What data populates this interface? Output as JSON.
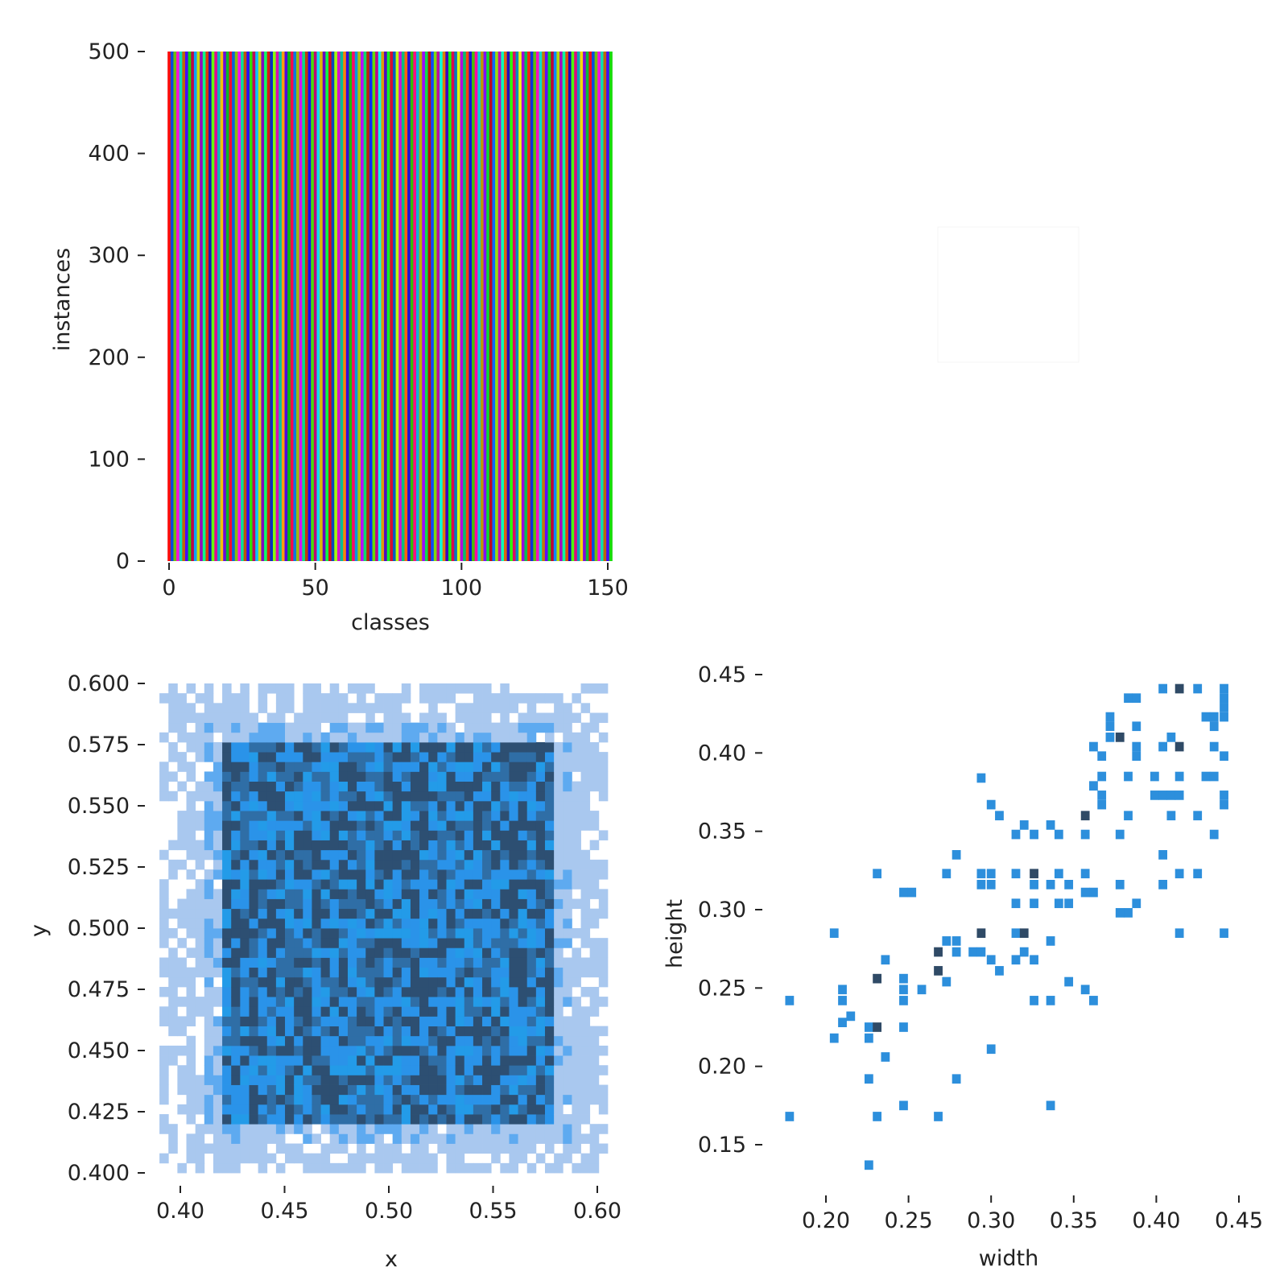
{
  "chart_data": [
    {
      "type": "bar",
      "panel": "top-left",
      "xlabel": "classes",
      "ylabel": "instances",
      "xlim": [
        -1,
        151
      ],
      "ylim": [
        0,
        500
      ],
      "xticks": [
        "0",
        "50",
        "100",
        "150"
      ],
      "yticks": [
        "0",
        "100",
        "200",
        "300",
        "400",
        "500"
      ],
      "num_classes": 152,
      "value_per_class": 500,
      "colormap": "hsv",
      "grid": false
    },
    {
      "type": "heatmap",
      "panel": "bottom-left",
      "xlabel": "x",
      "ylabel": "y",
      "xlim": [
        0.39,
        0.605
      ],
      "ylim": [
        0.4,
        0.6
      ],
      "xticks": [
        "0.40",
        "0.45",
        "0.50",
        "0.55",
        "0.60"
      ],
      "yticks": [
        "0.400",
        "0.425",
        "0.450",
        "0.475",
        "0.500",
        "0.525",
        "0.550",
        "0.575",
        "0.600"
      ],
      "bins": 50,
      "dense_region": {
        "x": [
          0.42,
          0.58
        ],
        "y": [
          0.42,
          0.575
        ]
      },
      "colors": {
        "low": "#a9c8ef",
        "mid": "#2a93e9",
        "high": "#2d4f72"
      }
    },
    {
      "type": "heatmap",
      "panel": "bottom-right",
      "xlabel": "width",
      "ylabel": "height",
      "xlim": [
        0.16,
        0.45
      ],
      "ylim": [
        0.12,
        0.45
      ],
      "xticks": [
        "0.20",
        "0.25",
        "0.30",
        "0.35",
        "0.40",
        "0.45"
      ],
      "yticks": [
        "0.15",
        "0.20",
        "0.25",
        "0.30",
        "0.35",
        "0.40",
        "0.45"
      ],
      "colors": {
        "mid": "#2d8fdc",
        "high": "#2f4a66"
      },
      "cells": [
        [
          0.178,
          0.242
        ],
        [
          0.178,
          0.168
        ],
        [
          0.205,
          0.218
        ],
        [
          0.205,
          0.285
        ],
        [
          0.21,
          0.228
        ],
        [
          0.21,
          0.249
        ],
        [
          0.21,
          0.242
        ],
        [
          0.215,
          0.232
        ],
        [
          0.226,
          0.218
        ],
        [
          0.226,
          0.225
        ],
        [
          0.226,
          0.192
        ],
        [
          0.226,
          0.137
        ],
        [
          0.231,
          0.225
        ],
        [
          0.231,
          0.256
        ],
        [
          0.231,
          0.168
        ],
        [
          0.231,
          0.323
        ],
        [
          0.236,
          0.268
        ],
        [
          0.236,
          0.206
        ],
        [
          0.247,
          0.249
        ],
        [
          0.247,
          0.256
        ],
        [
          0.247,
          0.242
        ],
        [
          0.247,
          0.225
        ],
        [
          0.247,
          0.175
        ],
        [
          0.247,
          0.311
        ],
        [
          0.252,
          0.311
        ],
        [
          0.258,
          0.249
        ],
        [
          0.268,
          0.273
        ],
        [
          0.268,
          0.261
        ],
        [
          0.268,
          0.168
        ],
        [
          0.273,
          0.254
        ],
        [
          0.273,
          0.28
        ],
        [
          0.279,
          0.28
        ],
        [
          0.279,
          0.273
        ],
        [
          0.279,
          0.335
        ],
        [
          0.279,
          0.192
        ],
        [
          0.273,
          0.323
        ],
        [
          0.289,
          0.273
        ],
        [
          0.294,
          0.273
        ],
        [
          0.294,
          0.285
        ],
        [
          0.294,
          0.323
        ],
        [
          0.3,
          0.323
        ],
        [
          0.294,
          0.316
        ],
        [
          0.3,
          0.316
        ],
        [
          0.294,
          0.384
        ],
        [
          0.3,
          0.268
        ],
        [
          0.3,
          0.367
        ],
        [
          0.3,
          0.211
        ],
        [
          0.305,
          0.36
        ],
        [
          0.305,
          0.261
        ],
        [
          0.315,
          0.348
        ],
        [
          0.315,
          0.323
        ],
        [
          0.315,
          0.285
        ],
        [
          0.315,
          0.268
        ],
        [
          0.315,
          0.304
        ],
        [
          0.32,
          0.354
        ],
        [
          0.32,
          0.285
        ],
        [
          0.32,
          0.273
        ],
        [
          0.326,
          0.348
        ],
        [
          0.326,
          0.323
        ],
        [
          0.326,
          0.316
        ],
        [
          0.326,
          0.304
        ],
        [
          0.326,
          0.268
        ],
        [
          0.326,
          0.242
        ],
        [
          0.336,
          0.354
        ],
        [
          0.336,
          0.316
        ],
        [
          0.336,
          0.28
        ],
        [
          0.336,
          0.242
        ],
        [
          0.336,
          0.175
        ],
        [
          0.341,
          0.348
        ],
        [
          0.341,
          0.323
        ],
        [
          0.341,
          0.304
        ],
        [
          0.347,
          0.316
        ],
        [
          0.347,
          0.304
        ],
        [
          0.347,
          0.254
        ],
        [
          0.357,
          0.323
        ],
        [
          0.357,
          0.311
        ],
        [
          0.357,
          0.36
        ],
        [
          0.357,
          0.348
        ],
        [
          0.357,
          0.249
        ],
        [
          0.362,
          0.311
        ],
        [
          0.362,
          0.242
        ],
        [
          0.362,
          0.379
        ],
        [
          0.362,
          0.404
        ],
        [
          0.367,
          0.373
        ],
        [
          0.367,
          0.367
        ],
        [
          0.367,
          0.398
        ],
        [
          0.367,
          0.385
        ],
        [
          0.372,
          0.423
        ],
        [
          0.378,
          0.348
        ],
        [
          0.378,
          0.316
        ],
        [
          0.378,
          0.298
        ],
        [
          0.378,
          0.41
        ],
        [
          0.383,
          0.298
        ],
        [
          0.383,
          0.385
        ],
        [
          0.383,
          0.36
        ],
        [
          0.383,
          0.435
        ],
        [
          0.388,
          0.435
        ],
        [
          0.388,
          0.417
        ],
        [
          0.388,
          0.404
        ],
        [
          0.388,
          0.398
        ],
        [
          0.388,
          0.304
        ],
        [
          0.399,
          0.373
        ],
        [
          0.399,
          0.385
        ],
        [
          0.404,
          0.441
        ],
        [
          0.404,
          0.404
        ],
        [
          0.404,
          0.373
        ],
        [
          0.404,
          0.335
        ],
        [
          0.404,
          0.316
        ],
        [
          0.409,
          0.41
        ],
        [
          0.409,
          0.373
        ],
        [
          0.409,
          0.36
        ],
        [
          0.414,
          0.441
        ],
        [
          0.414,
          0.404
        ],
        [
          0.414,
          0.385
        ],
        [
          0.414,
          0.373
        ],
        [
          0.414,
          0.323
        ],
        [
          0.414,
          0.285
        ],
        [
          0.425,
          0.323
        ],
        [
          0.425,
          0.441
        ],
        [
          0.425,
          0.36
        ],
        [
          0.43,
          0.423
        ],
        [
          0.43,
          0.385
        ],
        [
          0.435,
          0.423
        ],
        [
          0.435,
          0.385
        ],
        [
          0.435,
          0.348
        ],
        [
          0.435,
          0.404
        ],
        [
          0.435,
          0.417
        ],
        [
          0.441,
          0.441
        ],
        [
          0.441,
          0.435
        ],
        [
          0.441,
          0.429
        ],
        [
          0.441,
          0.423
        ],
        [
          0.441,
          0.398
        ],
        [
          0.441,
          0.373
        ],
        [
          0.441,
          0.367
        ],
        [
          0.441,
          0.285
        ],
        [
          0.372,
          0.417
        ],
        [
          0.372,
          0.41
        ]
      ],
      "dark_cells": [
        [
          0.231,
          0.225
        ],
        [
          0.231,
          0.256
        ],
        [
          0.268,
          0.273
        ],
        [
          0.268,
          0.261
        ],
        [
          0.294,
          0.285
        ],
        [
          0.32,
          0.285
        ],
        [
          0.326,
          0.285
        ],
        [
          0.326,
          0.323
        ],
        [
          0.357,
          0.36
        ],
        [
          0.378,
          0.41
        ],
        [
          0.414,
          0.441
        ],
        [
          0.414,
          0.404
        ]
      ]
    }
  ]
}
